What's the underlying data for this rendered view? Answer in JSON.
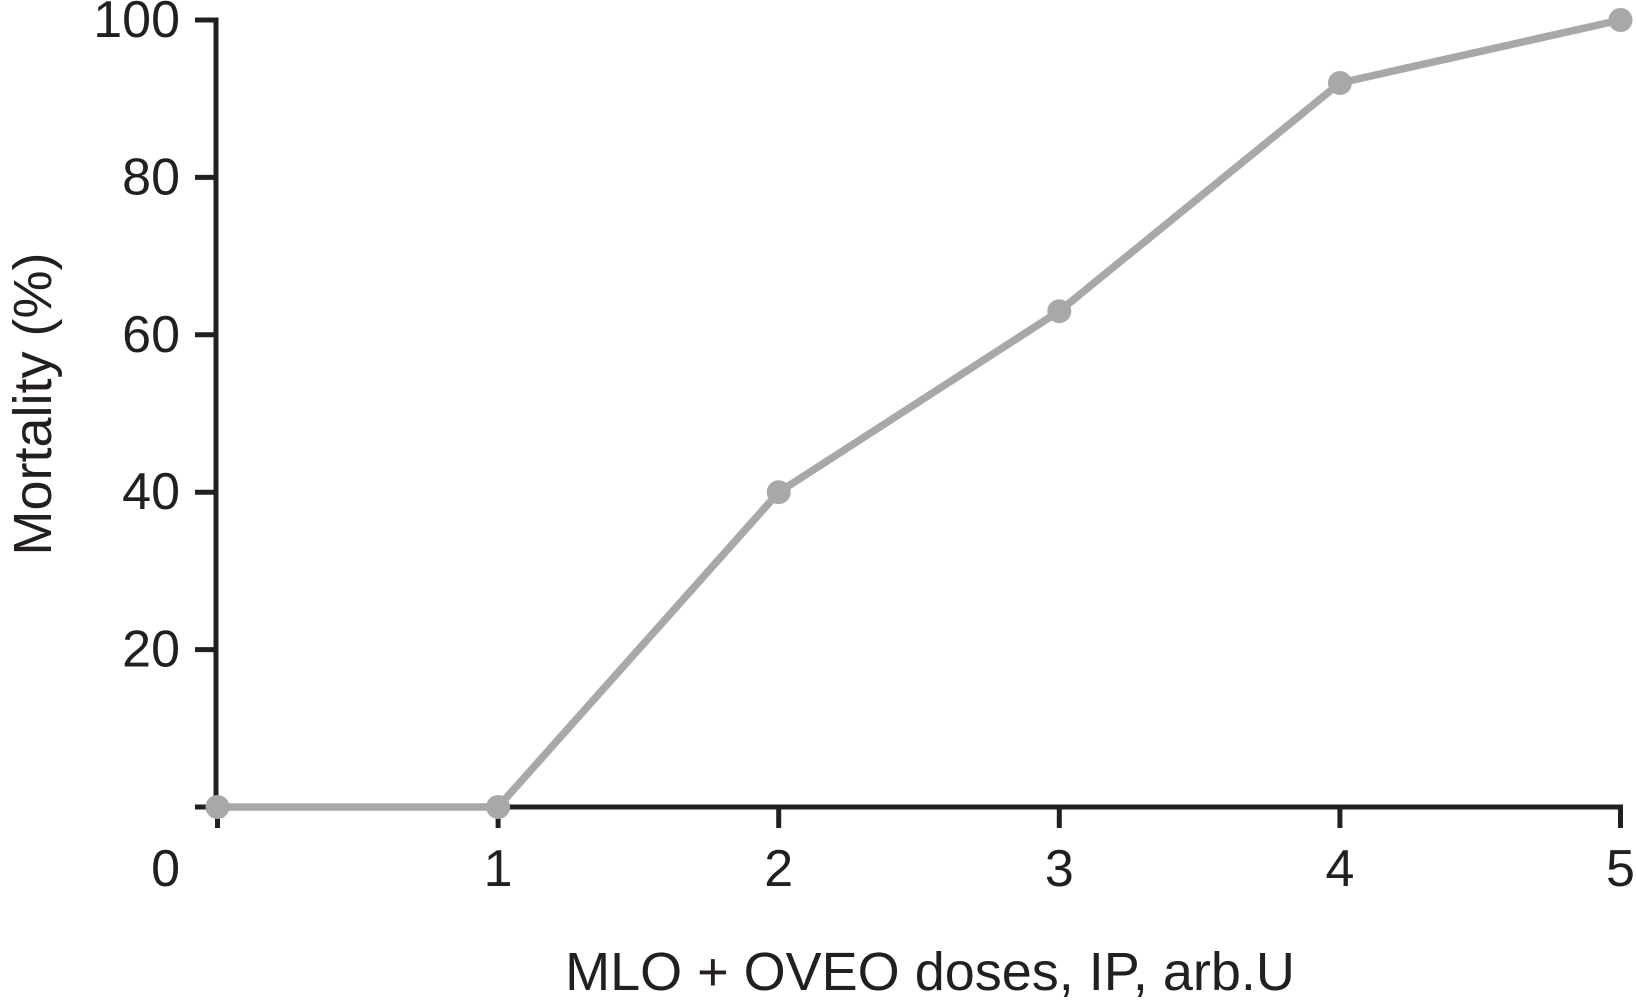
{
  "chart_data": {
    "type": "line",
    "title": "",
    "xlabel": "MLO + OVEO doses, IP, arb.U",
    "ylabel": "Mortality (%)",
    "x": [
      0,
      1,
      2,
      3,
      4,
      5
    ],
    "series": [
      {
        "name": "mortality",
        "values": [
          0,
          0,
          40,
          63,
          92,
          100
        ]
      }
    ],
    "xlim": [
      0,
      5
    ],
    "ylim": [
      0,
      100
    ],
    "x_ticks": [
      0,
      1,
      2,
      3,
      4,
      5
    ],
    "y_ticks": [
      0,
      20,
      40,
      60,
      80,
      100
    ],
    "origin_label": "0",
    "grid": false,
    "legend": "none",
    "marker": "circle",
    "series_color": "#a8a8a8",
    "axis_color": "#231f20",
    "background": "#ffffff"
  }
}
